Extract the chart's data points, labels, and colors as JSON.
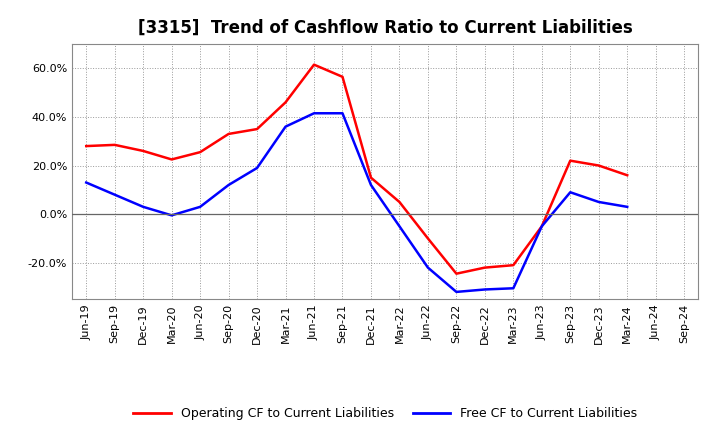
{
  "title": "[3315]  Trend of Cashflow Ratio to Current Liabilities",
  "x_labels": [
    "Jun-19",
    "Sep-19",
    "Dec-19",
    "Mar-20",
    "Jun-20",
    "Sep-20",
    "Dec-20",
    "Mar-21",
    "Jun-21",
    "Sep-21",
    "Dec-21",
    "Mar-22",
    "Jun-22",
    "Sep-22",
    "Dec-22",
    "Mar-23",
    "Jun-23",
    "Sep-23",
    "Dec-23",
    "Mar-24",
    "Jun-24",
    "Sep-24"
  ],
  "operating_cf": [
    28.0,
    28.5,
    26.0,
    22.5,
    25.5,
    33.0,
    35.0,
    46.0,
    61.5,
    56.5,
    15.0,
    5.0,
    -10.0,
    -24.5,
    -22.0,
    -21.0,
    -5.0,
    22.0,
    20.0,
    16.0,
    null,
    null
  ],
  "free_cf": [
    13.0,
    8.0,
    3.0,
    -0.5,
    3.0,
    12.0,
    19.0,
    36.0,
    41.5,
    41.5,
    12.0,
    -5.0,
    -22.0,
    -32.0,
    -31.0,
    -30.5,
    -5.0,
    9.0,
    5.0,
    3.0,
    null,
    null
  ],
  "operating_color": "#FF0000",
  "free_color": "#0000FF",
  "ylim": [
    -35,
    70
  ],
  "yticks": [
    -20,
    0,
    20,
    40,
    60
  ],
  "ytick_labels": [
    "-20.0%",
    "0.0%",
    "20.0%",
    "40.0%",
    "60.0%"
  ],
  "background_color": "#FFFFFF",
  "grid_color": "#999999",
  "legend_operating": "Operating CF to Current Liabilities",
  "legend_free": "Free CF to Current Liabilities",
  "title_fontsize": 12,
  "tick_fontsize": 8,
  "legend_fontsize": 9
}
